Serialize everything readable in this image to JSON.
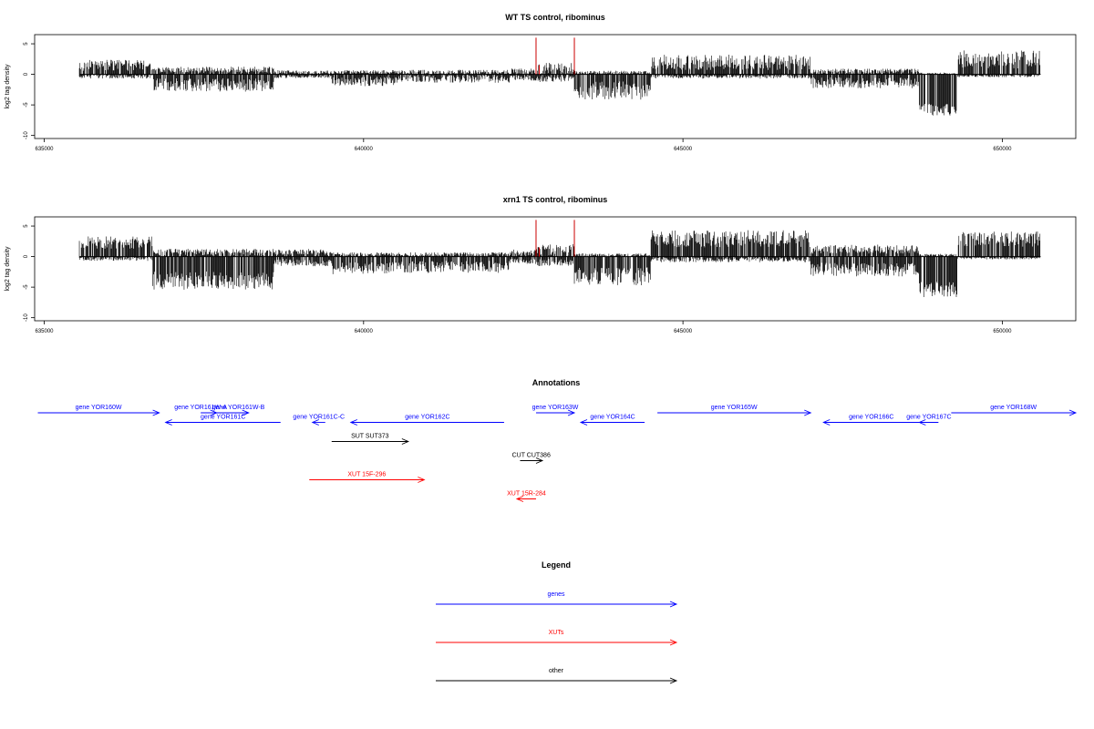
{
  "colors": {
    "genes": "#0000ff",
    "xuts": "#ff0000",
    "other": "#000000",
    "track": "#000000",
    "highlight": "#cc0000"
  },
  "chart_data": [
    {
      "type": "bar",
      "title": "WT TS control, ribominus",
      "ylabel": "log2 tag density",
      "xlim": [
        634850,
        651150
      ],
      "ylim": [
        -10.5,
        6.5
      ],
      "xticks": [
        635000,
        640000,
        645000,
        650000
      ],
      "yticks": [
        5,
        0,
        -5,
        -10
      ],
      "xtick_labels": [
        "635000",
        "640000",
        "645000",
        "650000"
      ],
      "ytick_labels": [
        "5",
        "0",
        "-5",
        "-10"
      ],
      "data_range": [
        635550,
        650600
      ],
      "bin_width": 10,
      "profile_plus": [
        [
          635550,
          636700,
          1.2,
          1.8
        ],
        [
          636700,
          638600,
          0.6,
          1.0
        ],
        [
          638600,
          639500,
          0.3,
          0.6
        ],
        [
          639500,
          640500,
          0.3,
          0.6
        ],
        [
          640500,
          642300,
          0.3,
          0.7
        ],
        [
          642300,
          642700,
          0.4,
          0.9
        ],
        [
          642700,
          643300,
          0.6,
          2.0
        ],
        [
          643300,
          644500,
          0.2,
          0.6
        ],
        [
          644500,
          647000,
          1.6,
          2.5
        ],
        [
          647000,
          648700,
          0.4,
          0.8
        ],
        [
          648700,
          649300,
          0.1,
          0.3
        ],
        [
          649300,
          650600,
          2.0,
          3.0
        ]
      ],
      "profile_minus": [
        [
          635550,
          636700,
          0.3,
          0.6
        ],
        [
          636700,
          638600,
          1.4,
          2.2
        ],
        [
          638600,
          639500,
          0.3,
          0.5
        ],
        [
          639500,
          640500,
          0.9,
          1.6
        ],
        [
          640500,
          642300,
          0.6,
          1.2
        ],
        [
          642300,
          642700,
          0.5,
          0.9
        ],
        [
          642700,
          643300,
          0.6,
          1.0
        ],
        [
          643300,
          644500,
          2.2,
          3.0
        ],
        [
          644500,
          647000,
          0.3,
          0.6
        ],
        [
          647000,
          648700,
          1.1,
          1.8
        ],
        [
          648700,
          649300,
          5.5,
          2.0
        ],
        [
          649300,
          650600,
          0.2,
          0.4
        ]
      ],
      "highlights": [
        {
          "x": 642700,
          "y": 6.0
        },
        {
          "x": 642750,
          "y": 1.5
        },
        {
          "x": 643300,
          "y": 6.0
        }
      ]
    },
    {
      "type": "bar",
      "title": "xrn1 TS control, ribominus",
      "ylabel": "log2 tag density",
      "xlim": [
        634850,
        651150
      ],
      "ylim": [
        -10.5,
        6.5
      ],
      "xticks": [
        635000,
        640000,
        645000,
        650000
      ],
      "yticks": [
        5,
        0,
        -5,
        -10
      ],
      "xtick_labels": [
        "635000",
        "640000",
        "645000",
        "650000"
      ],
      "ytick_labels": [
        "5",
        "0",
        "-5",
        "-10"
      ],
      "data_range": [
        635550,
        650600
      ],
      "bin_width": 10,
      "profile_plus": [
        [
          635550,
          636700,
          2.0,
          2.0
        ],
        [
          636700,
          638600,
          0.5,
          1.2
        ],
        [
          638600,
          639500,
          0.6,
          1.0
        ],
        [
          639500,
          640500,
          0.3,
          0.6
        ],
        [
          640500,
          642300,
          0.3,
          0.6
        ],
        [
          642300,
          642700,
          0.5,
          1.0
        ],
        [
          642700,
          643300,
          0.8,
          2.0
        ],
        [
          643300,
          644500,
          0.2,
          0.5
        ],
        [
          644500,
          647000,
          2.5,
          2.8
        ],
        [
          647000,
          648700,
          1.0,
          1.5
        ],
        [
          648700,
          649300,
          0.2,
          0.4
        ],
        [
          649300,
          650600,
          2.5,
          2.5
        ]
      ],
      "profile_minus": [
        [
          635550,
          636700,
          0.3,
          0.6
        ],
        [
          636700,
          638600,
          3.5,
          3.0
        ],
        [
          638600,
          639500,
          0.8,
          1.2
        ],
        [
          639500,
          640500,
          1.6,
          2.0
        ],
        [
          640500,
          642300,
          1.4,
          2.0
        ],
        [
          642300,
          642700,
          0.6,
          1.0
        ],
        [
          642700,
          643300,
          0.8,
          1.2
        ],
        [
          643300,
          644500,
          2.8,
          3.0
        ],
        [
          644500,
          647000,
          0.4,
          0.8
        ],
        [
          647000,
          648700,
          1.8,
          2.2
        ],
        [
          648700,
          649300,
          5.0,
          2.5
        ],
        [
          649300,
          650600,
          0.2,
          0.4
        ]
      ],
      "highlights": [
        {
          "x": 642700,
          "y": 6.0
        },
        {
          "x": 642750,
          "y": 1.5
        },
        {
          "x": 643300,
          "y": 6.0
        }
      ]
    }
  ],
  "annotations": {
    "title": "Annotations",
    "xlim": [
      634850,
      651150
    ],
    "items": [
      {
        "label": "gene YOR160W",
        "start": 634900,
        "end": 636800,
        "strand": "+",
        "row": 0,
        "kind": "genes"
      },
      {
        "label": "gene YOR161W-B",
        "start": 637500,
        "end": 638200,
        "strand": "+",
        "row": 0,
        "kind": "genes",
        "label_x": 638040
      },
      {
        "label": "gene YOR161W-A",
        "start": 637450,
        "end": 637700,
        "strand": "+",
        "row": 0,
        "kind": "genes",
        "label_x": 637450
      },
      {
        "label": "gene YOR161C",
        "start": 636900,
        "end": 638700,
        "strand": "-",
        "row": 1,
        "kind": "genes"
      },
      {
        "label": "gene YOR161C-C",
        "start": 639200,
        "end": 639400,
        "strand": "-",
        "row": 1,
        "kind": "genes"
      },
      {
        "label": "gene YOR162C",
        "start": 639800,
        "end": 642200,
        "strand": "-",
        "row": 1,
        "kind": "genes"
      },
      {
        "label": "gene YOR163W",
        "start": 642700,
        "end": 643300,
        "strand": "+",
        "row": 0,
        "kind": "genes"
      },
      {
        "label": "gene YOR164C",
        "start": 643400,
        "end": 644400,
        "strand": "-",
        "row": 1,
        "kind": "genes"
      },
      {
        "label": "gene YOR165W",
        "start": 644600,
        "end": 647000,
        "strand": "+",
        "row": 0,
        "kind": "genes"
      },
      {
        "label": "gene YOR166C",
        "start": 647200,
        "end": 648700,
        "strand": "-",
        "row": 1,
        "kind": "genes"
      },
      {
        "label": "gene YOR167C",
        "start": 648700,
        "end": 649000,
        "strand": "-",
        "row": 1,
        "kind": "genes"
      },
      {
        "label": "gene YOR168W",
        "start": 649200,
        "end": 651150,
        "strand": "+",
        "row": 0,
        "kind": "genes"
      },
      {
        "label": "SUT SUT373",
        "start": 639500,
        "end": 640700,
        "strand": "+",
        "row": 3,
        "kind": "other"
      },
      {
        "label": "CUT CUT386",
        "start": 642450,
        "end": 642800,
        "strand": "+",
        "row": 5,
        "kind": "other"
      },
      {
        "label": "XUT 15F-296",
        "start": 639150,
        "end": 640950,
        "strand": "+",
        "row": 7,
        "kind": "xuts"
      },
      {
        "label": "XUT 15R-284",
        "start": 642400,
        "end": 642700,
        "strand": "-",
        "row": 9,
        "kind": "xuts"
      }
    ]
  },
  "legend": {
    "title": "Legend",
    "items": [
      {
        "label": "genes",
        "kind": "genes"
      },
      {
        "label": "XUTs",
        "kind": "xuts"
      },
      {
        "label": "other",
        "kind": "other"
      }
    ]
  }
}
